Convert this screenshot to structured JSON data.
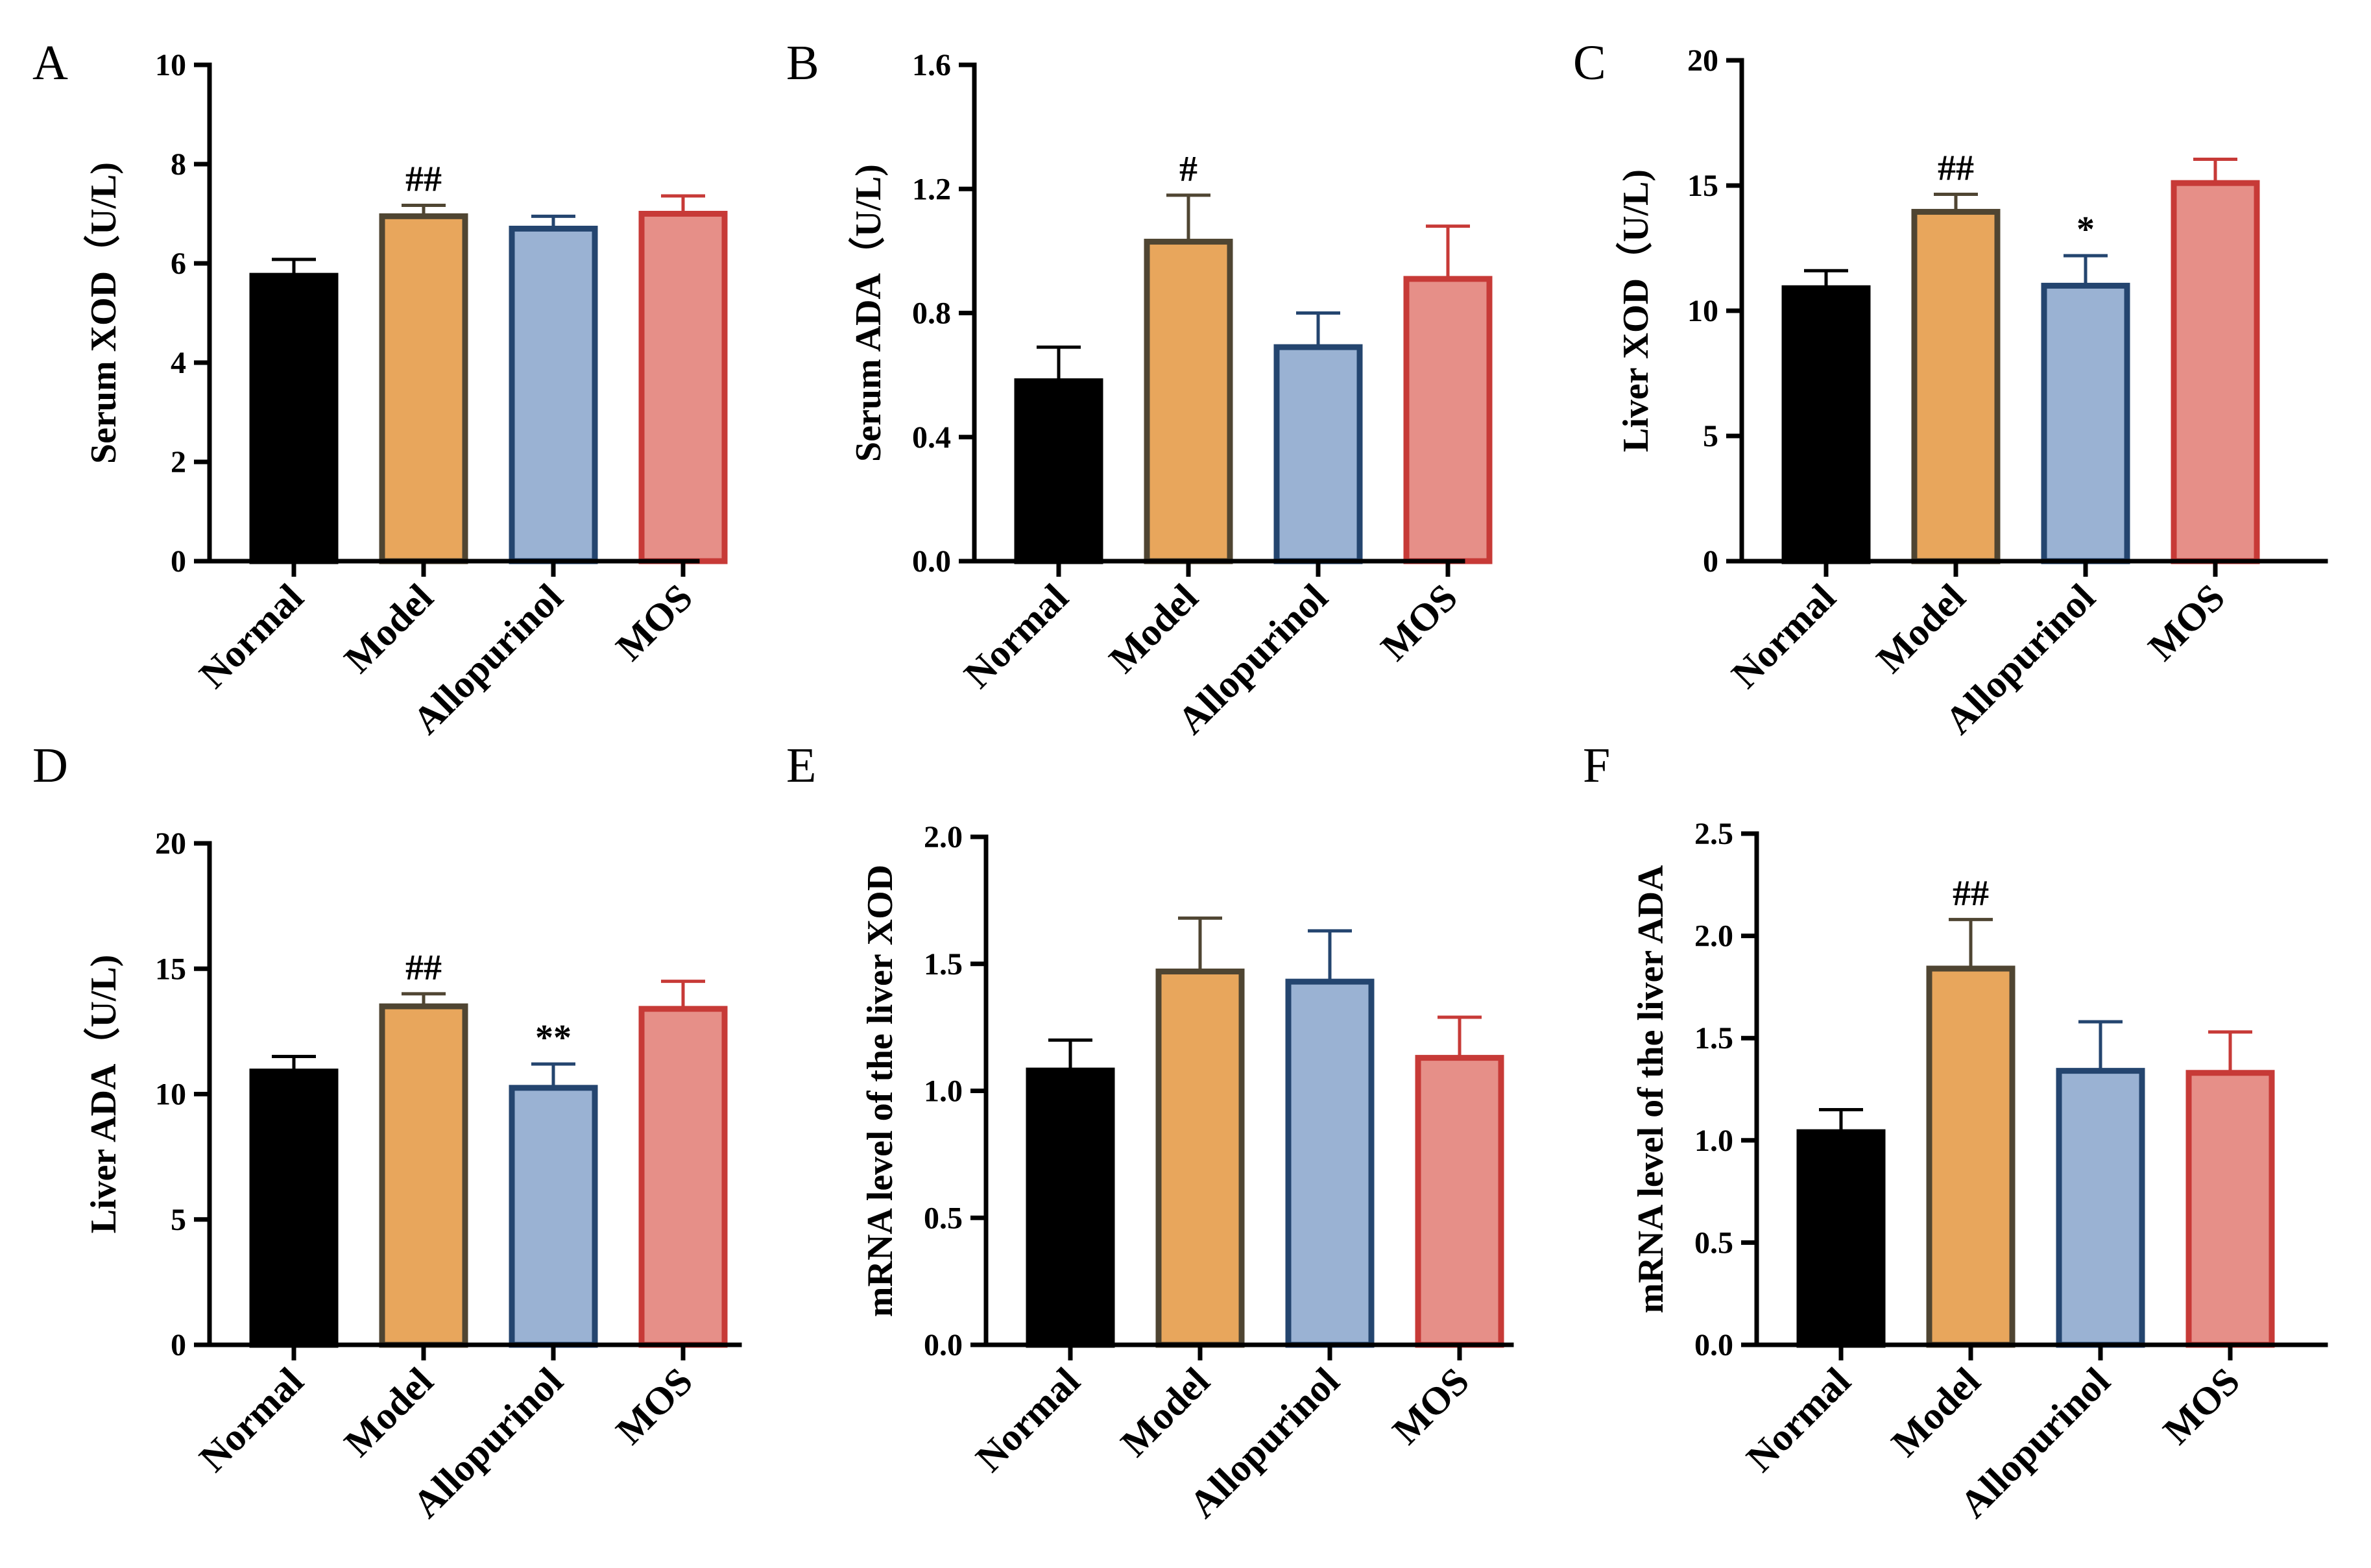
{
  "colors": {
    "Normal": {
      "fill": "#000000",
      "stroke": "#000000"
    },
    "Model": {
      "fill": "#E8A65C",
      "stroke": "#4F4532"
    },
    "Allopurinol": {
      "fill": "#9AB2D3",
      "stroke": "#24456F"
    },
    "MOS": {
      "fill": "#E68F88",
      "stroke": "#C73A37"
    }
  },
  "chart_data": [
    {
      "panel": "A",
      "type": "bar",
      "categories": [
        "Normal",
        "Model",
        "Allopurinol",
        "MOS"
      ],
      "values": [
        5.75,
        6.95,
        6.7,
        7.0
      ],
      "errors": [
        0.33,
        0.22,
        0.25,
        0.36
      ],
      "annotations": [
        "",
        "##",
        "",
        ""
      ],
      "ylabel": "Serum XOD（U/L)",
      "ylim": [
        0,
        10
      ],
      "yticks": [
        "0",
        "2",
        "4",
        "6",
        "8",
        "10"
      ]
    },
    {
      "panel": "B",
      "type": "bar",
      "categories": [
        "Normal",
        "Model",
        "Allopurinol",
        "MOS"
      ],
      "values": [
        0.58,
        1.03,
        0.69,
        0.91
      ],
      "errors": [
        0.11,
        0.15,
        0.11,
        0.17
      ],
      "annotations": [
        "",
        "#",
        "",
        ""
      ],
      "ylabel": "Serum ADA（U/L)",
      "ylim": [
        0,
        1.6
      ],
      "yticks": [
        "0.0",
        "0.4",
        "0.8",
        "1.2",
        "1.6"
      ]
    },
    {
      "panel": "C",
      "type": "bar",
      "categories": [
        "Normal",
        "Model",
        "Allopurinol",
        "MOS"
      ],
      "values": [
        10.9,
        13.95,
        11.0,
        15.1
      ],
      "errors": [
        0.7,
        0.7,
        1.2,
        0.95
      ],
      "annotations": [
        "",
        "##",
        "*",
        ""
      ],
      "ylabel": "Liver XOD（U/L)",
      "ylim": [
        0,
        20
      ],
      "yticks": [
        "0",
        "5",
        "10",
        "15",
        "20"
      ]
    },
    {
      "panel": "D",
      "type": "bar",
      "categories": [
        "Normal",
        "Model",
        "Allopurinol",
        "MOS"
      ],
      "values": [
        10.9,
        13.5,
        10.25,
        13.4
      ],
      "errors": [
        0.6,
        0.5,
        0.95,
        1.1
      ],
      "annotations": [
        "",
        "##",
        "**",
        ""
      ],
      "ylabel": "Liver ADA（U/L)",
      "ylim": [
        0,
        20
      ],
      "yticks": [
        "0",
        "5",
        "10",
        "15",
        "20"
      ]
    },
    {
      "panel": "E",
      "type": "bar",
      "categories": [
        "Normal",
        "Model",
        "Allopurinol",
        "MOS"
      ],
      "values": [
        1.08,
        1.47,
        1.43,
        1.13
      ],
      "errors": [
        0.12,
        0.21,
        0.2,
        0.16
      ],
      "annotations": [
        "",
        "",
        "",
        ""
      ],
      "ylabel": "mRNA level of the liver XOD",
      "ylim": [
        0,
        2.0
      ],
      "yticks": [
        "0.0",
        "0.5",
        "1.0",
        "1.5",
        "2.0"
      ]
    },
    {
      "panel": "F",
      "type": "bar",
      "categories": [
        "Normal",
        "Model",
        "Allopurinol",
        "MOS"
      ],
      "values": [
        1.04,
        1.84,
        1.34,
        1.33
      ],
      "errors": [
        0.11,
        0.24,
        0.24,
        0.2
      ],
      "annotations": [
        "",
        "##",
        "",
        ""
      ],
      "ylabel": "mRNA level of the liver ADA",
      "ylim": [
        0,
        2.5
      ],
      "yticks": [
        "0.0",
        "0.5",
        "1.0",
        "1.5",
        "2.0",
        "2.5"
      ]
    }
  ]
}
